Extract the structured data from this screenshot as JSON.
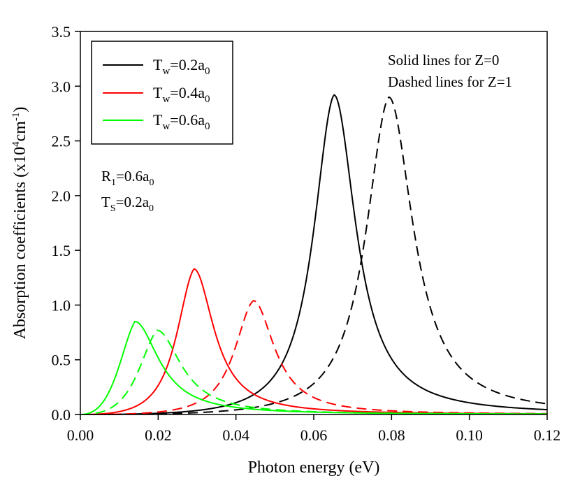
{
  "chart_data": {
    "type": "line",
    "title": "",
    "xlabel": "Photon energy (eV)",
    "ylabel": "Absorption coefficients (x10^4 cm^-1)",
    "ylabel_parts": {
      "main": "Absorption coefficients (x10",
      "sup1": "4",
      "mid": "cm",
      "sup2": "-1",
      "end": ")"
    },
    "xlim": [
      0.0,
      0.12
    ],
    "ylim": [
      0.0,
      3.5
    ],
    "xticks": [
      "0.00",
      "0.02",
      "0.04",
      "0.06",
      "0.08",
      "0.10",
      "0.12"
    ],
    "yticks": [
      "0.0",
      "0.5",
      "1.0",
      "1.5",
      "2.0",
      "2.5",
      "3.0",
      "3.5"
    ],
    "grid": false,
    "legend_position": "top-left",
    "legend": [
      {
        "prefix": "T",
        "sub": "w",
        "middle": "=0.2a",
        "sub2": "0",
        "color": "#000000"
      },
      {
        "prefix": "T",
        "sub": "w",
        "middle": "=0.4a",
        "sub2": "0",
        "color": "#ff0000"
      },
      {
        "prefix": "T",
        "sub": "w",
        "middle": "=0.6a",
        "sub2": "0",
        "color": "#00ff00"
      }
    ],
    "annotations": {
      "solid": "Solid lines for Z=0",
      "dashed": "Dashed lines for Z=1",
      "r1": {
        "prefix": "R",
        "sub": "1",
        "middle": "=0.6a",
        "sub2": "0"
      },
      "ts": {
        "prefix": "T",
        "sub": "S",
        "middle": "=0.2a",
        "sub2": "0"
      }
    },
    "series": [
      {
        "name": "Tw=0.2a0, Z=0",
        "color": "#000000",
        "dash": false,
        "peak_x": 0.0652,
        "peak_y": 2.92,
        "width": 0.0068
      },
      {
        "name": "Tw=0.2a0, Z=1",
        "color": "#000000",
        "dash": true,
        "peak_x": 0.0793,
        "peak_y": 2.9,
        "width": 0.0076
      },
      {
        "name": "Tw=0.4a0, Z=0",
        "color": "#ff0000",
        "dash": false,
        "peak_x": 0.0292,
        "peak_y": 1.33,
        "width": 0.0062
      },
      {
        "name": "Tw=0.4a0, Z=1",
        "color": "#ff0000",
        "dash": true,
        "peak_x": 0.0445,
        "peak_y": 1.04,
        "width": 0.0065
      },
      {
        "name": "Tw=0.6a0, Z=0",
        "color": "#00ff00",
        "dash": false,
        "peak_x": 0.014,
        "peak_y": 0.85,
        "width": 0.0075
      },
      {
        "name": "Tw=0.6a0, Z=1",
        "color": "#00ff00",
        "dash": true,
        "peak_x": 0.0197,
        "peak_y": 0.77,
        "width": 0.0075
      }
    ]
  }
}
